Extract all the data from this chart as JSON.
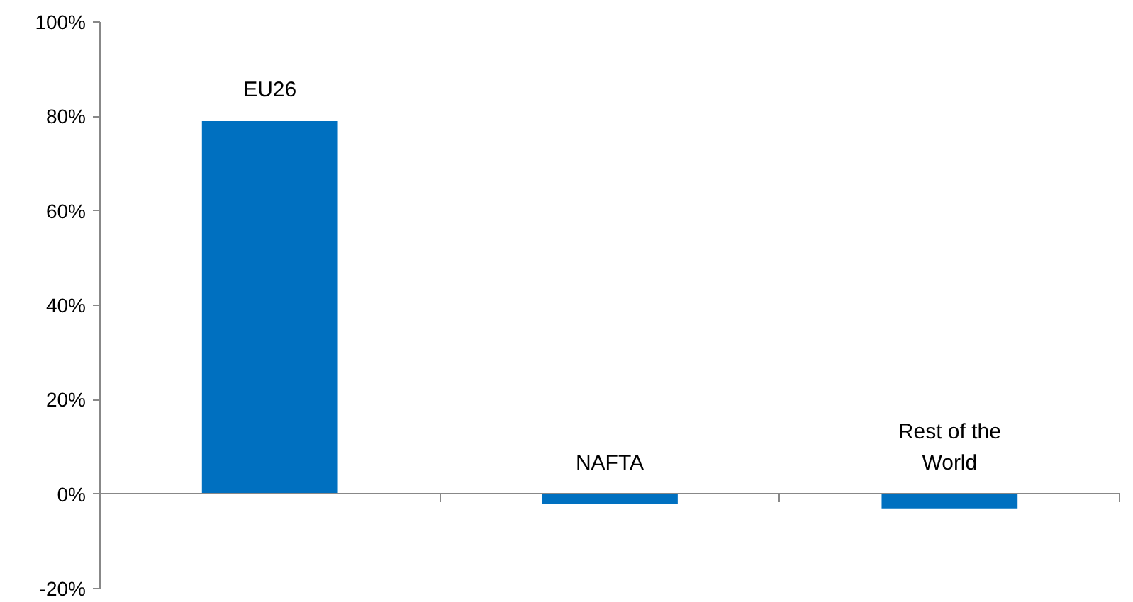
{
  "chart_data": {
    "type": "bar",
    "categories": [
      "EU26",
      "NAFTA",
      "Rest of the\nWorld"
    ],
    "values": [
      79,
      -2,
      -3
    ],
    "color": "#0070c0",
    "ylim": [
      -20,
      100
    ],
    "yticks": [
      {
        "value": -20,
        "label": "-20%"
      },
      {
        "value": 0,
        "label": "0%"
      },
      {
        "value": 20,
        "label": "20%"
      },
      {
        "value": 40,
        "label": "40%"
      },
      {
        "value": 60,
        "label": "60%"
      },
      {
        "value": 80,
        "label": "80%"
      },
      {
        "value": 100,
        "label": "100%"
      }
    ]
  }
}
